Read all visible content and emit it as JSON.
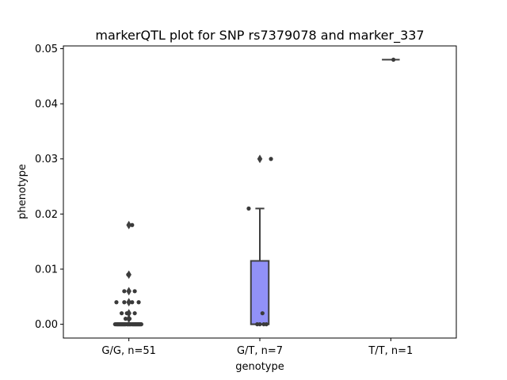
{
  "chart_data": {
    "type": "box",
    "title": "markerQTL plot for SNP rs7379078 and marker_337",
    "xlabel": "genotype",
    "ylabel": "phenotype",
    "ylim": [
      -0.0025,
      0.0505
    ],
    "yticks": [
      0.0,
      0.01,
      0.02,
      0.03,
      0.04,
      0.05
    ],
    "ytick_labels": [
      "0.00",
      "0.01",
      "0.02",
      "0.03",
      "0.04",
      "0.05"
    ],
    "categories": [
      "G/G, n=51",
      "G/T, n=7",
      "T/T, n=1"
    ],
    "box_color": "#9191f7",
    "line_color": "#3f3f3f",
    "point_color": "#3a3a3a",
    "boxes": [
      {
        "category": "G/G, n=51",
        "q1": 0.0,
        "median": 0.0,
        "q3": 0.0,
        "whisker_low": 0.0,
        "whisker_high": 0.0,
        "outliers": [
          0.018,
          0.009,
          0.006,
          0.004,
          0.002,
          0.001
        ]
      },
      {
        "category": "G/T, n=7",
        "q1": 0.0,
        "median": 0.0,
        "q3": 0.0115,
        "whisker_low": 0.0,
        "whisker_high": 0.021,
        "outliers": [
          0.03
        ]
      },
      {
        "category": "T/T, n=1",
        "q1": 0.048,
        "median": 0.048,
        "q3": 0.048,
        "whisker_low": 0.048,
        "whisker_high": 0.048,
        "outliers": []
      }
    ],
    "points": [
      {
        "category": "G/G, n=51",
        "jitter": [
          [
            0.025,
            0.018
          ],
          [
            -0.005,
            0.009
          ],
          [
            0.045,
            0.006
          ],
          [
            -0.035,
            0.006
          ],
          [
            -0.035,
            0.004
          ],
          [
            0.025,
            0.004
          ],
          [
            -0.095,
            0.004
          ],
          [
            0.075,
            0.004
          ],
          [
            -0.055,
            0.002
          ],
          [
            0.045,
            0.002
          ],
          [
            -0.015,
            0.002
          ],
          [
            0.005,
            0.001
          ],
          [
            -0.025,
            0.001
          ],
          [
            -0.105,
            0.0
          ],
          [
            -0.095,
            0.0
          ],
          [
            -0.085,
            0.0
          ],
          [
            -0.075,
            0.0
          ],
          [
            -0.065,
            0.0
          ],
          [
            -0.055,
            0.0
          ],
          [
            -0.045,
            0.0
          ],
          [
            -0.035,
            0.0
          ],
          [
            -0.025,
            0.0
          ],
          [
            -0.015,
            0.0
          ],
          [
            -0.005,
            0.0
          ],
          [
            0.005,
            0.0
          ],
          [
            0.015,
            0.0
          ],
          [
            0.025,
            0.0
          ],
          [
            0.035,
            0.0
          ],
          [
            0.045,
            0.0
          ],
          [
            0.055,
            0.0
          ],
          [
            0.065,
            0.0
          ],
          [
            0.075,
            0.0
          ],
          [
            0.085,
            0.0
          ],
          [
            0.095,
            0.0
          ],
          [
            -0.09,
            0.0
          ],
          [
            -0.07,
            0.0
          ],
          [
            -0.05,
            0.0
          ],
          [
            -0.03,
            0.0
          ],
          [
            -0.01,
            0.0
          ],
          [
            0.01,
            0.0
          ],
          [
            0.03,
            0.0
          ],
          [
            0.05,
            0.0
          ],
          [
            0.07,
            0.0
          ],
          [
            0.09,
            0.0
          ],
          [
            -0.08,
            0.0
          ],
          [
            -0.04,
            0.0
          ],
          [
            0.0,
            0.0
          ],
          [
            0.04,
            0.0
          ],
          [
            0.08,
            0.0
          ],
          [
            -0.06,
            0.0
          ],
          [
            0.06,
            0.0
          ]
        ]
      },
      {
        "category": "G/T, n=7",
        "jitter": [
          [
            0.085,
            0.03
          ],
          [
            -0.085,
            0.021
          ],
          [
            0.02,
            0.002
          ],
          [
            -0.02,
            0.0
          ],
          [
            0.0,
            0.0
          ],
          [
            0.03,
            0.0
          ],
          [
            0.05,
            0.0
          ]
        ]
      },
      {
        "category": "T/T, n=1",
        "jitter": [
          [
            0.02,
            0.048
          ]
        ]
      }
    ]
  }
}
